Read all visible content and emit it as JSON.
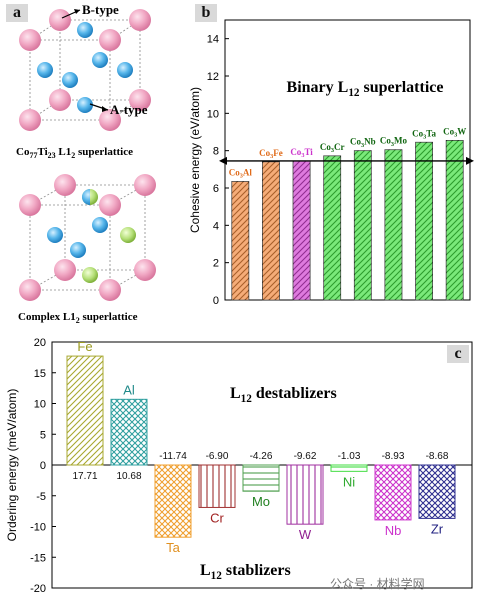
{
  "panel_a": {
    "label": "a",
    "b_type": "B-type",
    "a_type": "A-type",
    "caption_top": "Co77Ti23 L12 superlattice",
    "caption_bottom": "Complex L12 superlattice"
  },
  "panel_b": {
    "label": "b"
  },
  "panel_c": {
    "label": "c"
  },
  "watermark": "公众号 · 材料学网",
  "chart_data": [
    {
      "type": "bar",
      "panel": "b",
      "title": "Binary L12 superlattice",
      "ylabel": "Cohesive energy (eV/atom)",
      "ylim": [
        0,
        15
      ],
      "yticks": [
        0,
        2,
        4,
        6,
        8,
        10,
        12,
        14
      ],
      "categories": [
        "Co3Al",
        "Co3Fe",
        "Co3Ti",
        "Co3Cr",
        "Co3Nb",
        "Co3Mo",
        "Co3Ta",
        "Co3W"
      ],
      "values": [
        6.35,
        7.4,
        7.45,
        7.72,
        8.0,
        8.05,
        8.45,
        8.55
      ],
      "bar_colors": [
        "#f07f2f",
        "#f07f2f",
        "#cc33cc",
        "#33dd33",
        "#33dd33",
        "#33dd33",
        "#33dd33",
        "#33dd33"
      ],
      "label_colors": [
        "#e06b1a",
        "#e06b1a",
        "#cc33cc",
        "#116611",
        "#116611",
        "#116611",
        "#116611",
        "#116611"
      ],
      "reference_line": 7.45,
      "grid": false
    },
    {
      "type": "bar",
      "panel": "c",
      "ylabel": "Ordering energy (meV/atom)",
      "ylim": [
        -20,
        20
      ],
      "yticks": [
        -20,
        -15,
        -10,
        -5,
        0,
        5,
        10,
        15,
        20
      ],
      "categories": [
        "Fe",
        "Al",
        "Ta",
        "Cr",
        "Mo",
        "W",
        "Ni",
        "Nb",
        "Zr"
      ],
      "values": [
        17.71,
        10.68,
        -11.74,
        -6.9,
        -4.26,
        -9.62,
        -1.03,
        -8.93,
        -8.68
      ],
      "value_labels": [
        "17.71",
        "10.68",
        "-11.74",
        "-6.90",
        "-4.26",
        "-9.62",
        "-1.03",
        "-8.93",
        "-8.68"
      ],
      "bar_colors": [
        "#a8a830",
        "#30a0a0",
        "#f0a030",
        "#a03030",
        "#50a050",
        "#a030a0",
        "#40dd40",
        "#cc33cc",
        "#303090"
      ],
      "label_colors": [
        "#9a9a20",
        "#208a8a",
        "#e09020",
        "#a02020",
        "#208020",
        "#902090",
        "#30aa30",
        "#cc33cc",
        "#202080"
      ],
      "annotations": [
        "L12 destablizers",
        "L12 stablizers"
      ],
      "grid": false
    }
  ]
}
